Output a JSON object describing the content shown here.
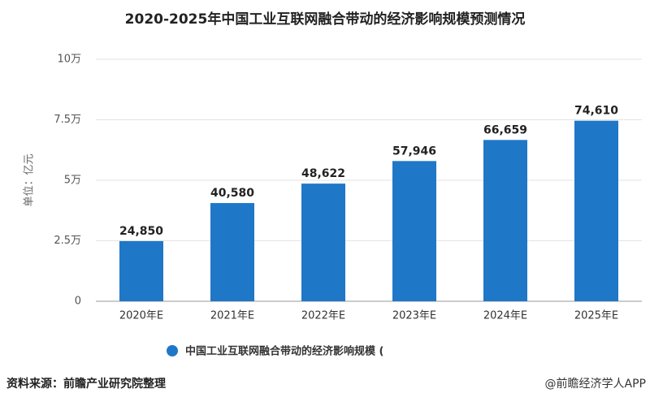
{
  "chart_data": {
    "type": "bar",
    "title": "2020-2025年中国工业互联网融合带动的经济影响规模预测情况",
    "y_label": "单位：亿元",
    "categories": [
      "2020年E",
      "2021年E",
      "2022年E",
      "2023年E",
      "2024年E",
      "2025年E"
    ],
    "series": [
      {
        "name": "中国工业互联网融合带动的经济影响规模 (",
        "color": "#1f77c8",
        "values": [
          24850,
          40580,
          48622,
          57946,
          66659,
          74610
        ],
        "value_labels": [
          "24,850",
          "40,580",
          "48,622",
          "57,946",
          "66,659",
          "74,610"
        ]
      }
    ],
    "ylim": [
      0,
      100000
    ],
    "yticks": [
      0,
      {
        "value": 25000,
        "label": "2.5万"
      },
      {
        "value": 50000,
        "label": "5万"
      },
      {
        "value": 75000,
        "label": "7.5万"
      },
      {
        "value": 100000,
        "label": "10万"
      }
    ],
    "grid": true,
    "source": "资料来源：前瞻产业研究院整理",
    "credit": "@前瞻经济学人APP"
  }
}
